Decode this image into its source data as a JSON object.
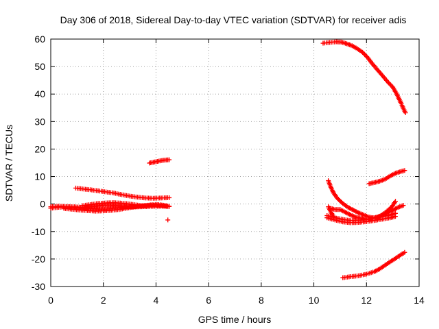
{
  "chart_data": {
    "type": "scatter",
    "title": "Day 306 of 2018, Sidereal Day-to-day VTEC variation (SDTVAR) for receiver adis",
    "xlabel": "GPS time / hours",
    "ylabel": "SDTVAR / TECUs",
    "xlim": [
      0,
      14
    ],
    "ylim": [
      -30,
      60
    ],
    "x_ticks": [
      0,
      2,
      4,
      6,
      8,
      10,
      12,
      14
    ],
    "y_ticks": [
      -30,
      -20,
      -10,
      0,
      10,
      20,
      30,
      40,
      50,
      60
    ],
    "grid": true,
    "marker": "plus",
    "color": "#ff0000",
    "series": [
      {
        "points": [
          [
            0.0,
            -1.5
          ],
          [
            0.3,
            -1.2
          ],
          [
            0.6,
            -1.0
          ],
          [
            0.9,
            -1.2
          ],
          [
            1.2,
            -1.5
          ],
          [
            1.5,
            -1.5
          ],
          [
            1.8,
            -1.8
          ],
          [
            2.1,
            -1.8
          ],
          [
            2.4,
            -1.5
          ],
          [
            2.7,
            -1.3
          ],
          [
            3.0,
            -1.0
          ],
          [
            3.3,
            -0.8
          ],
          [
            3.6,
            -0.6
          ],
          [
            3.9,
            -0.4
          ],
          [
            4.2,
            -0.6
          ],
          [
            4.5,
            -0.8
          ]
        ]
      },
      {
        "points": [
          [
            0.0,
            -1.0
          ],
          [
            0.3,
            -0.8
          ],
          [
            0.6,
            -0.9
          ],
          [
            0.9,
            -1.0
          ],
          [
            1.2,
            -1.2
          ],
          [
            1.4,
            -1.3
          ]
        ]
      },
      {
        "points": [
          [
            0.5,
            -1.6
          ],
          [
            0.8,
            -1.9
          ],
          [
            1.1,
            -2.2
          ],
          [
            1.4,
            -2.4
          ],
          [
            1.7,
            -2.6
          ],
          [
            2.0,
            -2.5
          ],
          [
            2.3,
            -2.3
          ],
          [
            2.6,
            -2.0
          ],
          [
            2.9,
            -1.5
          ],
          [
            3.2,
            -1.0
          ],
          [
            3.5,
            -0.6
          ],
          [
            3.8,
            -0.3
          ],
          [
            4.1,
            -0.2
          ],
          [
            4.4,
            -0.6
          ]
        ]
      },
      {
        "points": [
          [
            1.2,
            -0.6
          ],
          [
            1.5,
            -0.2
          ],
          [
            1.8,
            0.2
          ],
          [
            2.1,
            0.4
          ],
          [
            2.4,
            0.5
          ],
          [
            2.7,
            0.3
          ],
          [
            3.0,
            0.0
          ],
          [
            3.3,
            -0.4
          ],
          [
            3.6,
            -0.8
          ]
        ]
      },
      {
        "points": [
          [
            0.95,
            5.8
          ],
          [
            1.2,
            5.5
          ],
          [
            1.5,
            5.2
          ],
          [
            1.8,
            4.8
          ],
          [
            2.1,
            4.4
          ],
          [
            2.4,
            4.0
          ],
          [
            2.7,
            3.4
          ],
          [
            3.0,
            2.9
          ],
          [
            3.3,
            2.5
          ],
          [
            3.6,
            2.2
          ],
          [
            3.9,
            2.1
          ],
          [
            4.2,
            2.2
          ],
          [
            4.5,
            2.3
          ]
        ]
      },
      {
        "points": [
          [
            1.3,
            -1.2
          ],
          [
            1.6,
            -0.9
          ],
          [
            1.9,
            -0.6
          ],
          [
            2.2,
            -0.5
          ],
          [
            2.5,
            -0.6
          ],
          [
            2.8,
            -0.9
          ],
          [
            3.1,
            -1.1
          ],
          [
            3.4,
            -1.0
          ],
          [
            3.7,
            -0.9
          ],
          [
            4.0,
            -0.8
          ],
          [
            4.3,
            -0.8
          ],
          [
            4.5,
            -0.9
          ]
        ]
      },
      {
        "points": [
          [
            3.75,
            14.9
          ],
          [
            3.9,
            15.2
          ],
          [
            4.05,
            15.5
          ],
          [
            4.2,
            15.8
          ],
          [
            4.35,
            16.0
          ],
          [
            4.5,
            16.1
          ]
        ]
      },
      {
        "points": [
          [
            4.45,
            -5.8
          ]
        ]
      },
      {
        "points": [
          [
            10.35,
            58.5
          ],
          [
            10.6,
            58.8
          ],
          [
            10.85,
            59.0
          ],
          [
            11.05,
            58.9
          ],
          [
            11.25,
            58.3
          ],
          [
            11.45,
            57.6
          ],
          [
            11.65,
            56.5
          ],
          [
            11.85,
            55.2
          ],
          [
            12.05,
            53.2
          ],
          [
            12.2,
            51.3
          ],
          [
            12.4,
            49.0
          ],
          [
            12.6,
            46.8
          ],
          [
            12.8,
            44.5
          ],
          [
            13.0,
            42.5
          ],
          [
            13.15,
            40.0
          ],
          [
            13.3,
            37.0
          ],
          [
            13.4,
            34.8
          ],
          [
            13.48,
            33.2
          ]
        ]
      },
      {
        "points": [
          [
            12.1,
            7.4
          ],
          [
            12.3,
            7.8
          ],
          [
            12.5,
            8.3
          ],
          [
            12.7,
            9.0
          ],
          [
            12.9,
            10.2
          ],
          [
            13.1,
            11.2
          ],
          [
            13.3,
            11.8
          ],
          [
            13.45,
            12.2
          ]
        ]
      },
      {
        "points": [
          [
            10.55,
            8.5
          ],
          [
            10.65,
            6.0
          ],
          [
            10.75,
            4.0
          ],
          [
            10.9,
            2.0
          ],
          [
            11.1,
            0.2
          ],
          [
            11.3,
            -1.2
          ],
          [
            11.5,
            -2.2
          ],
          [
            11.7,
            -3.2
          ],
          [
            11.9,
            -4.0
          ],
          [
            12.1,
            -4.8
          ],
          [
            12.3,
            -5.0
          ],
          [
            12.5,
            -4.5
          ],
          [
            12.7,
            -3.2
          ],
          [
            12.9,
            -1.6
          ],
          [
            13.0,
            -0.5
          ],
          [
            13.1,
            1.0
          ]
        ]
      },
      {
        "points": [
          [
            10.5,
            -5.0
          ],
          [
            10.8,
            -5.8
          ],
          [
            11.1,
            -6.5
          ],
          [
            11.4,
            -6.8
          ],
          [
            11.7,
            -6.7
          ],
          [
            12.0,
            -6.4
          ],
          [
            12.3,
            -6.0
          ],
          [
            12.6,
            -5.5
          ],
          [
            12.9,
            -5.0
          ],
          [
            13.1,
            -4.5
          ]
        ]
      },
      {
        "points": [
          [
            10.5,
            -4.2
          ],
          [
            10.8,
            -5.0
          ],
          [
            11.1,
            -5.6
          ],
          [
            11.4,
            -6.0
          ],
          [
            11.7,
            -5.9
          ],
          [
            12.0,
            -5.6
          ],
          [
            12.3,
            -5.1
          ],
          [
            12.6,
            -4.6
          ],
          [
            12.9,
            -4.0
          ],
          [
            13.1,
            -3.4
          ]
        ]
      },
      {
        "points": [
          [
            10.6,
            -1.5
          ],
          [
            10.8,
            -2.0
          ],
          [
            11.0,
            -2.0
          ],
          [
            11.2,
            -3.0
          ],
          [
            11.4,
            -4.0
          ],
          [
            11.6,
            -4.8
          ],
          [
            11.8,
            -5.2
          ],
          [
            12.0,
            -5.5
          ],
          [
            12.2,
            -5.3
          ],
          [
            12.4,
            -4.8
          ],
          [
            12.6,
            -4.0
          ],
          [
            12.8,
            -3.2
          ],
          [
            13.0,
            -2.3
          ],
          [
            13.2,
            -1.2
          ],
          [
            13.4,
            -0.5
          ]
        ]
      },
      {
        "points": [
          [
            10.55,
            -1.0
          ],
          [
            10.65,
            -3.0
          ],
          [
            10.75,
            -4.5
          ]
        ]
      },
      {
        "points": [
          [
            11.1,
            -26.8
          ],
          [
            11.4,
            -26.4
          ],
          [
            11.7,
            -26.1
          ],
          [
            12.0,
            -25.5
          ],
          [
            12.3,
            -24.6
          ],
          [
            12.5,
            -23.6
          ],
          [
            12.7,
            -22.3
          ],
          [
            12.9,
            -21.0
          ],
          [
            13.1,
            -19.8
          ],
          [
            13.3,
            -18.5
          ],
          [
            13.45,
            -17.6
          ]
        ]
      }
    ]
  }
}
